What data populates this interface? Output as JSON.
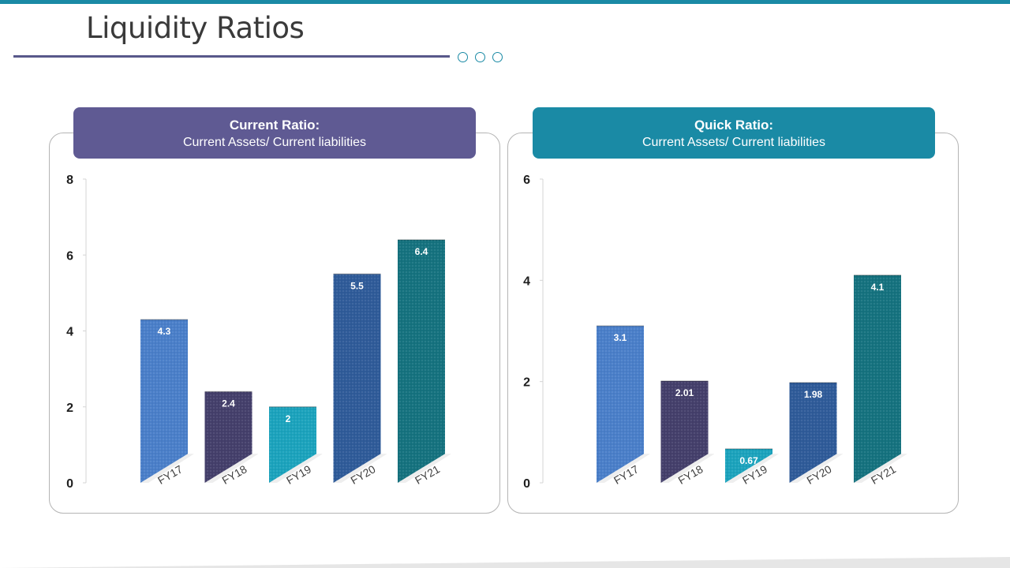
{
  "page": {
    "title": "Liquidity Ratios"
  },
  "colors": {
    "accent": "#1a8aa5",
    "rule": "#58588a",
    "header_current": "#5f5a93",
    "header_quick": "#1a8aa5",
    "bar_colors": [
      "#4a7fc9",
      "#443f6b",
      "#1ba3bd",
      "#2f5b99",
      "#15727f"
    ]
  },
  "panels": [
    {
      "title": "Current Ratio:",
      "subtitle": "Current Assets/ Current liabilities",
      "chart_data": {
        "type": "bar",
        "categories": [
          "FY17",
          "FY18",
          "FY19",
          "FY20",
          "FY21"
        ],
        "values": [
          4.3,
          2.4,
          2,
          5.5,
          6.4
        ],
        "value_labels": [
          "4.3",
          "2.4",
          "2",
          "5.5",
          "6.4"
        ],
        "yticks": [
          0,
          2,
          4,
          6,
          8
        ],
        "ylim": [
          0,
          8
        ],
        "title": "Current Ratio:",
        "xlabel": "",
        "ylabel": ""
      }
    },
    {
      "title": "Quick Ratio:",
      "subtitle": "Current Assets/ Current liabilities",
      "chart_data": {
        "type": "bar",
        "categories": [
          "FY17",
          "FY18",
          "FY19",
          "FY20",
          "FY21"
        ],
        "values": [
          3.1,
          2.01,
          0.67,
          1.98,
          4.1
        ],
        "value_labels": [
          "3.1",
          "2.01",
          "0.67",
          "1.98",
          "4.1"
        ],
        "yticks": [
          0,
          2,
          4,
          6
        ],
        "ylim": [
          0,
          6
        ],
        "title": "Quick Ratio:",
        "xlabel": "",
        "ylabel": ""
      }
    }
  ]
}
